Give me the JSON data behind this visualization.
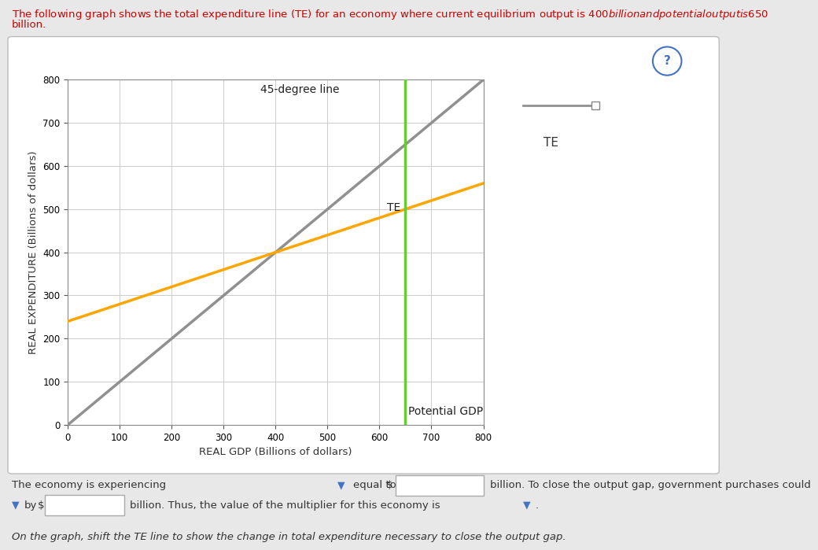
{
  "xlim": [
    0,
    800
  ],
  "ylim": [
    0,
    800
  ],
  "xticks": [
    0,
    100,
    200,
    300,
    400,
    500,
    600,
    700,
    800
  ],
  "yticks": [
    0,
    100,
    200,
    300,
    400,
    500,
    600,
    700,
    800
  ],
  "xlabel": "REAL GDP (Billions of dollars)",
  "ylabel": "REAL EXPENDITURE (Billions of dollars)",
  "te_intercept": 240,
  "te_slope": 0.4,
  "degree45_slope": 1.0,
  "degree45_intercept": 0,
  "potential_gdp_x": 650,
  "te_color": "#FFA500",
  "degree45_color": "#909090",
  "potential_gdp_color": "#66CC33",
  "bg_color": "#E8E8E8",
  "plot_bg_color": "#FFFFFF",
  "grid_color": "#CCCCCC",
  "box_bg_color": "#FFFFFF",
  "title_line1": "The following graph shows the total expenditure line (TE) for an economy where current equilibrium output is $400 billion and potential output is $650",
  "title_line2": "billion.",
  "title_color": "#CC0000"
}
